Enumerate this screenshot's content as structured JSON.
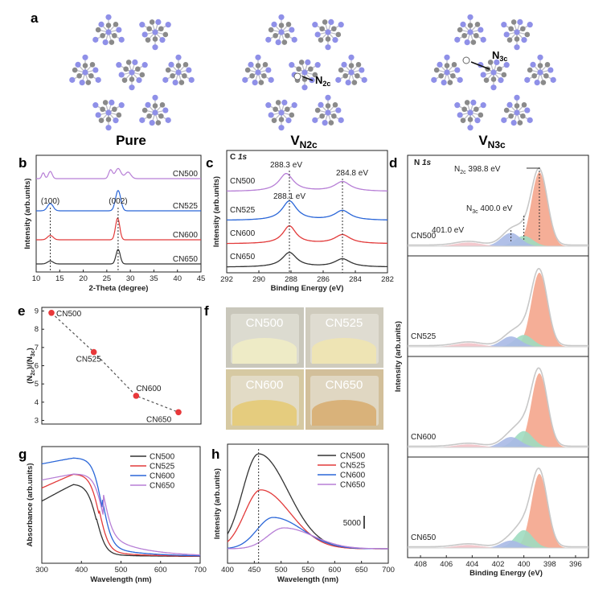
{
  "panel_labels": [
    "a",
    "b",
    "c",
    "d",
    "e",
    "f",
    "g",
    "h"
  ],
  "panel_a": {
    "structures": [
      {
        "label": "Pure",
        "defect": ""
      },
      {
        "label_main": "V",
        "label_sub": "N2c",
        "defect_main": "N",
        "defect_sub": "2c"
      },
      {
        "label_main": "V",
        "label_sub": "N3c",
        "defect_main": "N",
        "defect_sub": "3c"
      }
    ],
    "colors": {
      "nitrogen": "#8f90e8",
      "carbon": "#8a8a8a",
      "bond": "#9a9aa8"
    }
  },
  "chart_data": [
    {
      "panel": "b",
      "type": "line",
      "xlabel": "2-Theta (degree)",
      "ylabel": "Intensity (arb.units)",
      "xlim": [
        10,
        45
      ],
      "xticks": [
        "10",
        "15",
        "20",
        "25",
        "30",
        "35",
        "40",
        "45"
      ],
      "series": [
        {
          "name": "CN500",
          "color": "#b77fd6"
        },
        {
          "name": "CN525",
          "color": "#2a66d8"
        },
        {
          "name": "CN600",
          "color": "#e23a3a"
        },
        {
          "name": "CN650",
          "color": "#333333"
        }
      ],
      "annotations": [
        {
          "text": "(100)",
          "x": 13.0
        },
        {
          "text": "(002)",
          "x": 27.4
        }
      ]
    },
    {
      "panel": "c",
      "type": "line",
      "title_main": "C",
      "title_sub": "1s",
      "xlabel": "Binding Energy (eV)",
      "ylabel": "Intensity (arb.units)",
      "xlim": [
        292,
        282
      ],
      "xticks": [
        "292",
        "290",
        "288",
        "286",
        "284",
        "282"
      ],
      "series": [
        {
          "name": "CN500",
          "color": "#b77fd6"
        },
        {
          "name": "CN525",
          "color": "#2a66d8"
        },
        {
          "name": "CN600",
          "color": "#e23a3a"
        },
        {
          "name": "CN650",
          "color": "#333333"
        }
      ],
      "annotations": [
        {
          "text": "288.3 eV",
          "x": 288.3
        },
        {
          "text": "288.1 eV",
          "x": 288.1
        },
        {
          "text": "284.8 eV",
          "x": 284.8
        }
      ]
    },
    {
      "panel": "d",
      "type": "area",
      "title_main": "N",
      "title_sub": "1s",
      "xlabel": "Binding Energy (eV)",
      "ylabel": "Intensity (arb.units)",
      "xlim": [
        409,
        395
      ],
      "xticks": [
        "408",
        "406",
        "404",
        "402",
        "400",
        "398",
        "396"
      ],
      "samples": [
        "CN500",
        "CN525",
        "CN600",
        "CN650"
      ],
      "components": [
        {
          "center": 398.8,
          "color": "#f4a58c"
        },
        {
          "center": 400.0,
          "color": "#9fdcc0"
        },
        {
          "center": 401.0,
          "color": "#a9b9e6"
        },
        {
          "center": 404.3,
          "color": "#f2c2c8"
        }
      ],
      "annotations": [
        {
          "main": "N",
          "sub": "2c",
          "value": "398.8 eV"
        },
        {
          "main": "N",
          "sub": "3c",
          "value": "400.0 eV"
        },
        {
          "main": "",
          "sub": "",
          "value": "401.0 eV"
        }
      ]
    },
    {
      "panel": "e",
      "type": "scatter",
      "ylabel_main": "(N",
      "ylabel_sub1": "2c",
      "ylabel_mid": ")/(N",
      "ylabel_sub2": "3c",
      "ylabel_end": ")",
      "ylim": [
        2.8,
        9.2
      ],
      "yticks": [
        "3",
        "4",
        "5",
        "6",
        "7",
        "8",
        "9"
      ],
      "points": [
        {
          "label": "CN500",
          "x": 1,
          "y": 8.9
        },
        {
          "label": "CN525",
          "x": 2,
          "y": 6.75
        },
        {
          "label": "CN600",
          "x": 3,
          "y": 4.35
        },
        {
          "label": "CN650",
          "x": 4,
          "y": 3.45
        }
      ],
      "color": "#e8383a"
    },
    {
      "panel": "g",
      "type": "line",
      "xlabel": "Wavelength (nm)",
      "ylabel": "Absorbance (arb.units)",
      "xlim": [
        300,
        700
      ],
      "xticks": [
        "300",
        "400",
        "500",
        "600",
        "700"
      ],
      "series": [
        {
          "name": "CN500",
          "color": "#333333"
        },
        {
          "name": "CN525",
          "color": "#e23a3a"
        },
        {
          "name": "CN600",
          "color": "#2a66d8"
        },
        {
          "name": "CN650",
          "color": "#b77fd6"
        }
      ]
    },
    {
      "panel": "h",
      "type": "line",
      "xlabel": "Wavelength (nm)",
      "ylabel": "Intensity (arb.units)",
      "xlim": [
        400,
        700
      ],
      "xticks": [
        "400",
        "450",
        "500",
        "550",
        "600",
        "650",
        "700"
      ],
      "scale_bar_label": "5000",
      "peak_x": 458,
      "series": [
        {
          "name": "CN500",
          "color": "#333333",
          "peak_x": 458,
          "peak_height": 1.0
        },
        {
          "name": "CN525",
          "color": "#e23a3a",
          "peak_x": 462,
          "peak_height": 0.62
        },
        {
          "name": "CN600",
          "color": "#2a66d8",
          "peak_x": 485,
          "peak_height": 0.33
        },
        {
          "name": "CN650",
          "color": "#b77fd6",
          "peak_x": 505,
          "peak_height": 0.22
        }
      ]
    }
  ],
  "panel_f": {
    "photos": [
      {
        "label": "CN500",
        "powder": "#eeebc6",
        "bg": "#c9c7bb"
      },
      {
        "label": "CN525",
        "powder": "#eee4b4",
        "bg": "#cfcbbd"
      },
      {
        "label": "CN600",
        "powder": "#e5cc7e",
        "bg": "#d6c9a2"
      },
      {
        "label": "CN650",
        "powder": "#d9b27a",
        "bg": "#d2bf9a"
      }
    ]
  }
}
